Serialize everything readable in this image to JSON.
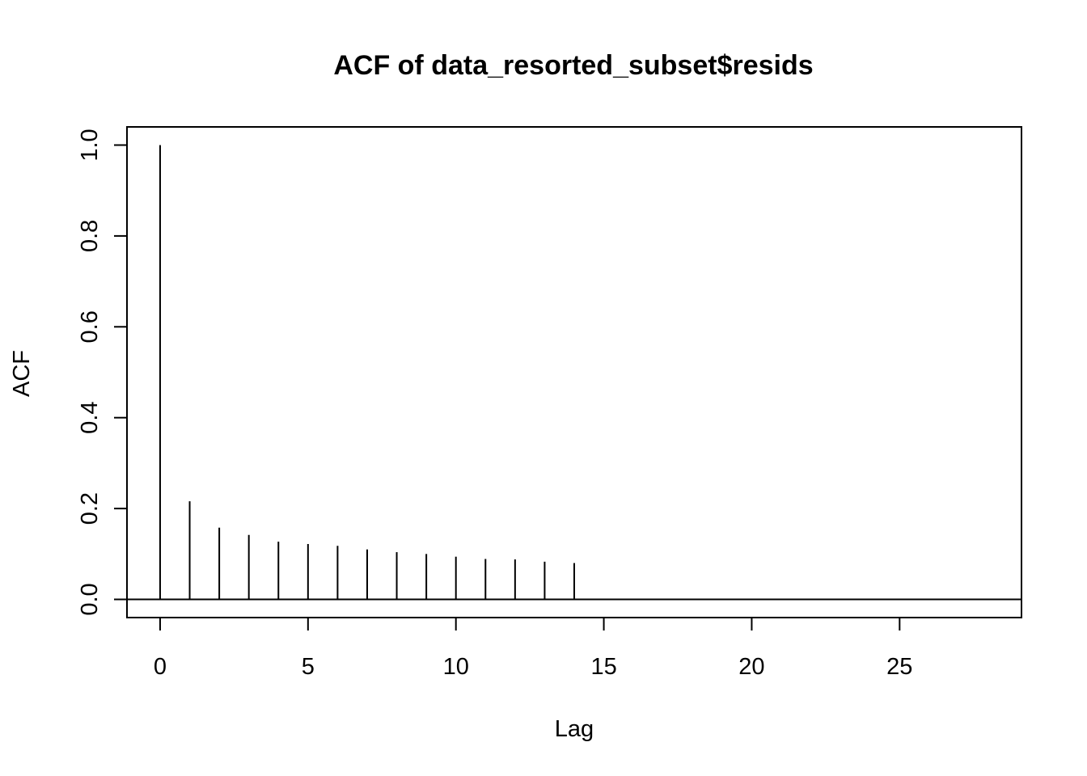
{
  "chart_data": {
    "type": "bar",
    "title": "ACF of data_resorted_subset$resids",
    "xlabel": "Lag",
    "ylabel": "ACF",
    "x": [
      0,
      1,
      2,
      3,
      4,
      5,
      6,
      7,
      8,
      9,
      10,
      11,
      12,
      13,
      14
    ],
    "values": [
      1.0,
      0.216,
      0.158,
      0.142,
      0.127,
      0.122,
      0.118,
      0.11,
      0.104,
      0.1,
      0.094,
      0.089,
      0.088,
      0.083,
      0.08
    ],
    "xlim": [
      -1.12,
      29.12
    ],
    "ylim": [
      -0.04,
      1.04
    ],
    "xticks": [
      0,
      5,
      10,
      15,
      20,
      25
    ],
    "xtick_labels": [
      "0",
      "5",
      "10",
      "15",
      "20",
      "25"
    ],
    "yticks": [
      0.0,
      0.2,
      0.4,
      0.6,
      0.8,
      1.0
    ],
    "ytick_labels": [
      "0.0",
      "0.2",
      "0.4",
      "0.6",
      "0.8",
      "1.0"
    ],
    "zero_line": true,
    "grid": false,
    "colors": {
      "bars": "#000000",
      "axes": "#000000",
      "background": "#ffffff"
    }
  }
}
